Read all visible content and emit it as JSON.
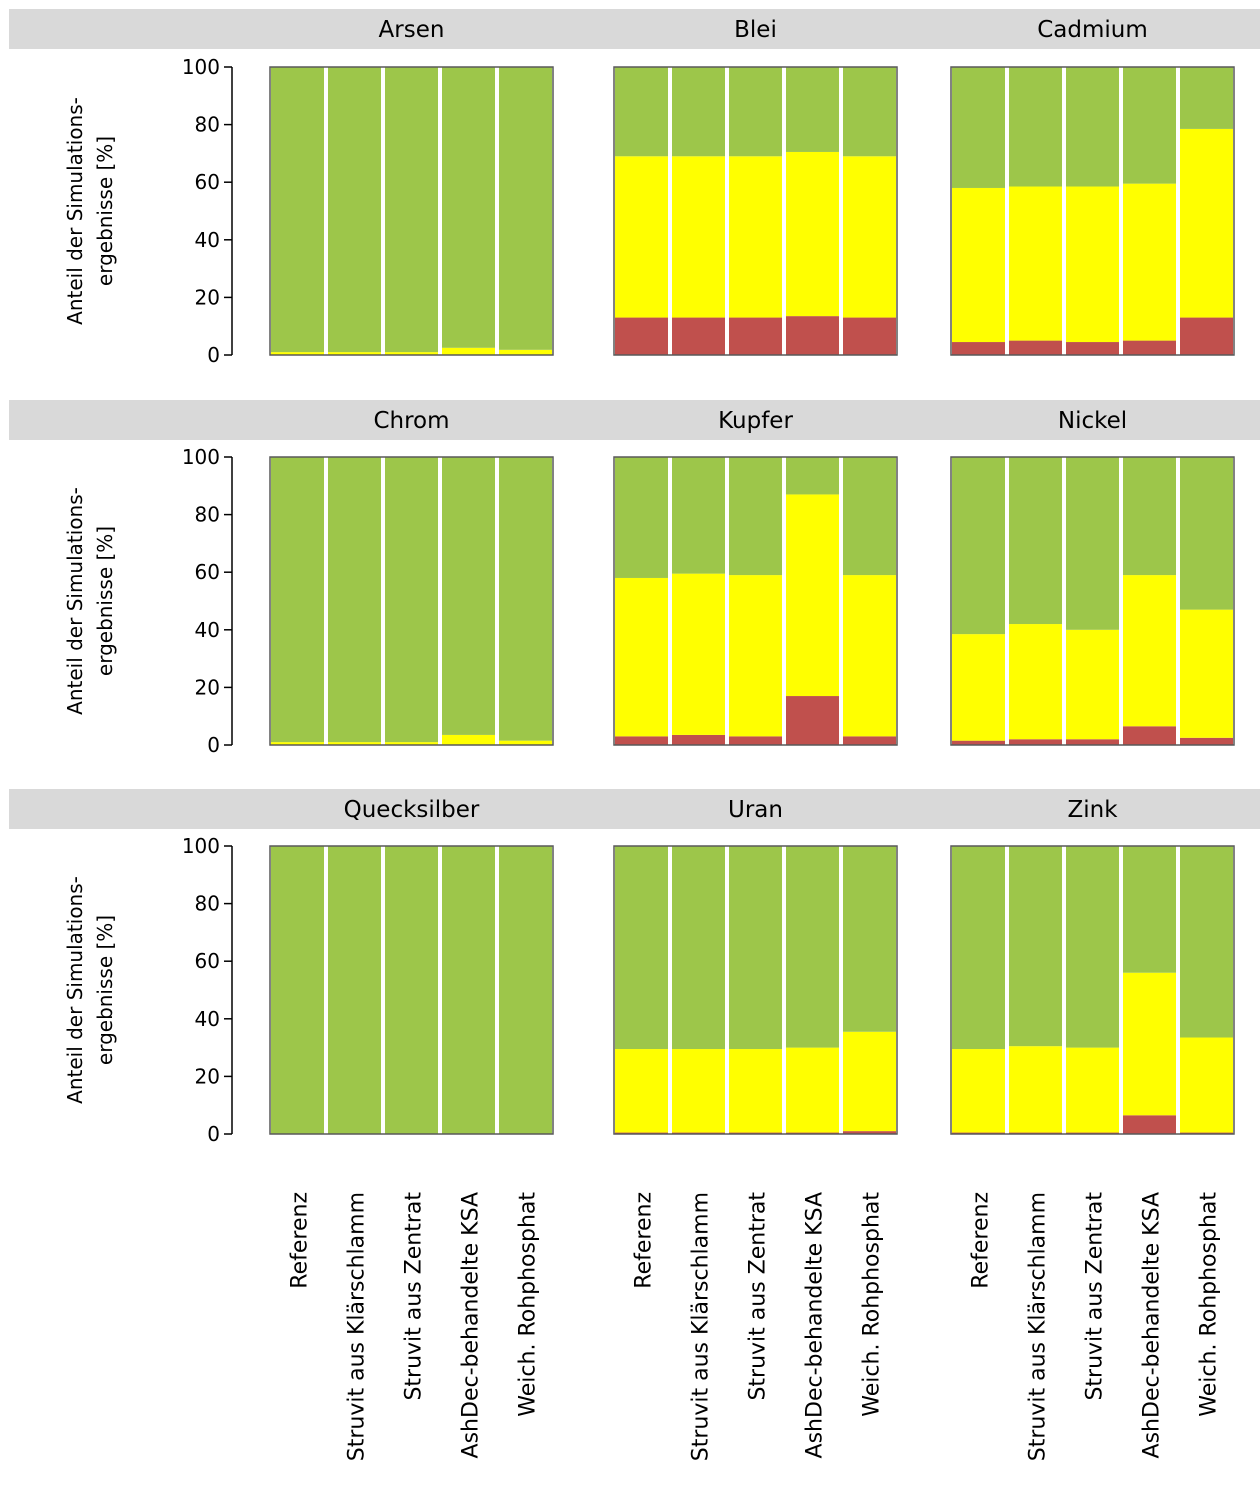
{
  "colors": {
    "green": "#9dc64a",
    "yellow": "#ffff00",
    "red": "#c0504d",
    "strip": "#d9d9d9",
    "gap": "#ffffff"
  },
  "y_axis_label_lines": [
    "Anteil der Simulations-",
    "ergebnisse [%]"
  ],
  "y_ticks": [
    0,
    20,
    40,
    60,
    80,
    100
  ],
  "categories": [
    "Referenz",
    "Struvit aus Klärschlamm",
    "Struvit aus Zentrat",
    "AshDec-behandelte KSA",
    "Weich. Rohphosphat"
  ],
  "chart_data": {
    "type": "bar",
    "stacked": true,
    "ylim": [
      0,
      100
    ],
    "ylabel": "Anteil der Simulations- ergebnisse [%]",
    "categories": [
      "Referenz",
      "Struvit aus Klärschlamm",
      "Struvit aus Zentrat",
      "AshDec-behandelte KSA",
      "Weich. Rohphosphat"
    ],
    "panels": [
      {
        "title": "Arsen",
        "red": [
          0,
          0,
          0,
          0,
          0
        ],
        "yellow": [
          1,
          1,
          1,
          2.5,
          1.8
        ],
        "green": [
          99,
          99,
          99,
          97.5,
          98.2
        ]
      },
      {
        "title": "Blei",
        "red": [
          13,
          13,
          13,
          13.5,
          13
        ],
        "yellow": [
          56,
          56,
          56,
          57,
          56
        ],
        "green": [
          31,
          31,
          31,
          29.5,
          31
        ]
      },
      {
        "title": "Cadmium",
        "red": [
          4.5,
          5,
          4.5,
          5,
          13
        ],
        "yellow": [
          53.5,
          53.5,
          54,
          54.5,
          65.5
        ],
        "green": [
          42,
          41.5,
          41.5,
          40.5,
          21.5
        ]
      },
      {
        "title": "Chrom",
        "red": [
          0,
          0,
          0,
          0,
          0
        ],
        "yellow": [
          1,
          1,
          1,
          3.5,
          1.5
        ],
        "green": [
          99,
          99,
          99,
          96.5,
          98.5
        ]
      },
      {
        "title": "Kupfer",
        "red": [
          3,
          3.5,
          3,
          17,
          3
        ],
        "yellow": [
          55,
          56,
          56,
          70,
          56
        ],
        "green": [
          42,
          40.5,
          41,
          13,
          41
        ]
      },
      {
        "title": "Nickel",
        "red": [
          1.5,
          2,
          2,
          6.5,
          2.5
        ],
        "yellow": [
          37,
          40,
          38,
          52.5,
          44.5
        ],
        "green": [
          61.5,
          58,
          60,
          41,
          53
        ]
      },
      {
        "title": "Quecksilber",
        "red": [
          0,
          0,
          0,
          0,
          0
        ],
        "yellow": [
          0,
          0,
          0,
          0,
          0
        ],
        "green": [
          100,
          100,
          100,
          100,
          100
        ]
      },
      {
        "title": "Uran",
        "red": [
          0.5,
          0.5,
          0.5,
          0.5,
          1
        ],
        "yellow": [
          29,
          29,
          29,
          29.5,
          34.5
        ],
        "green": [
          70.5,
          70.5,
          70.5,
          70,
          64.5
        ]
      },
      {
        "title": "Zink",
        "red": [
          0.5,
          0.5,
          0.5,
          6.5,
          0.5
        ],
        "yellow": [
          29,
          30,
          29.5,
          49.5,
          33
        ],
        "green": [
          70.5,
          69.5,
          70,
          44,
          66.5
        ]
      }
    ]
  }
}
